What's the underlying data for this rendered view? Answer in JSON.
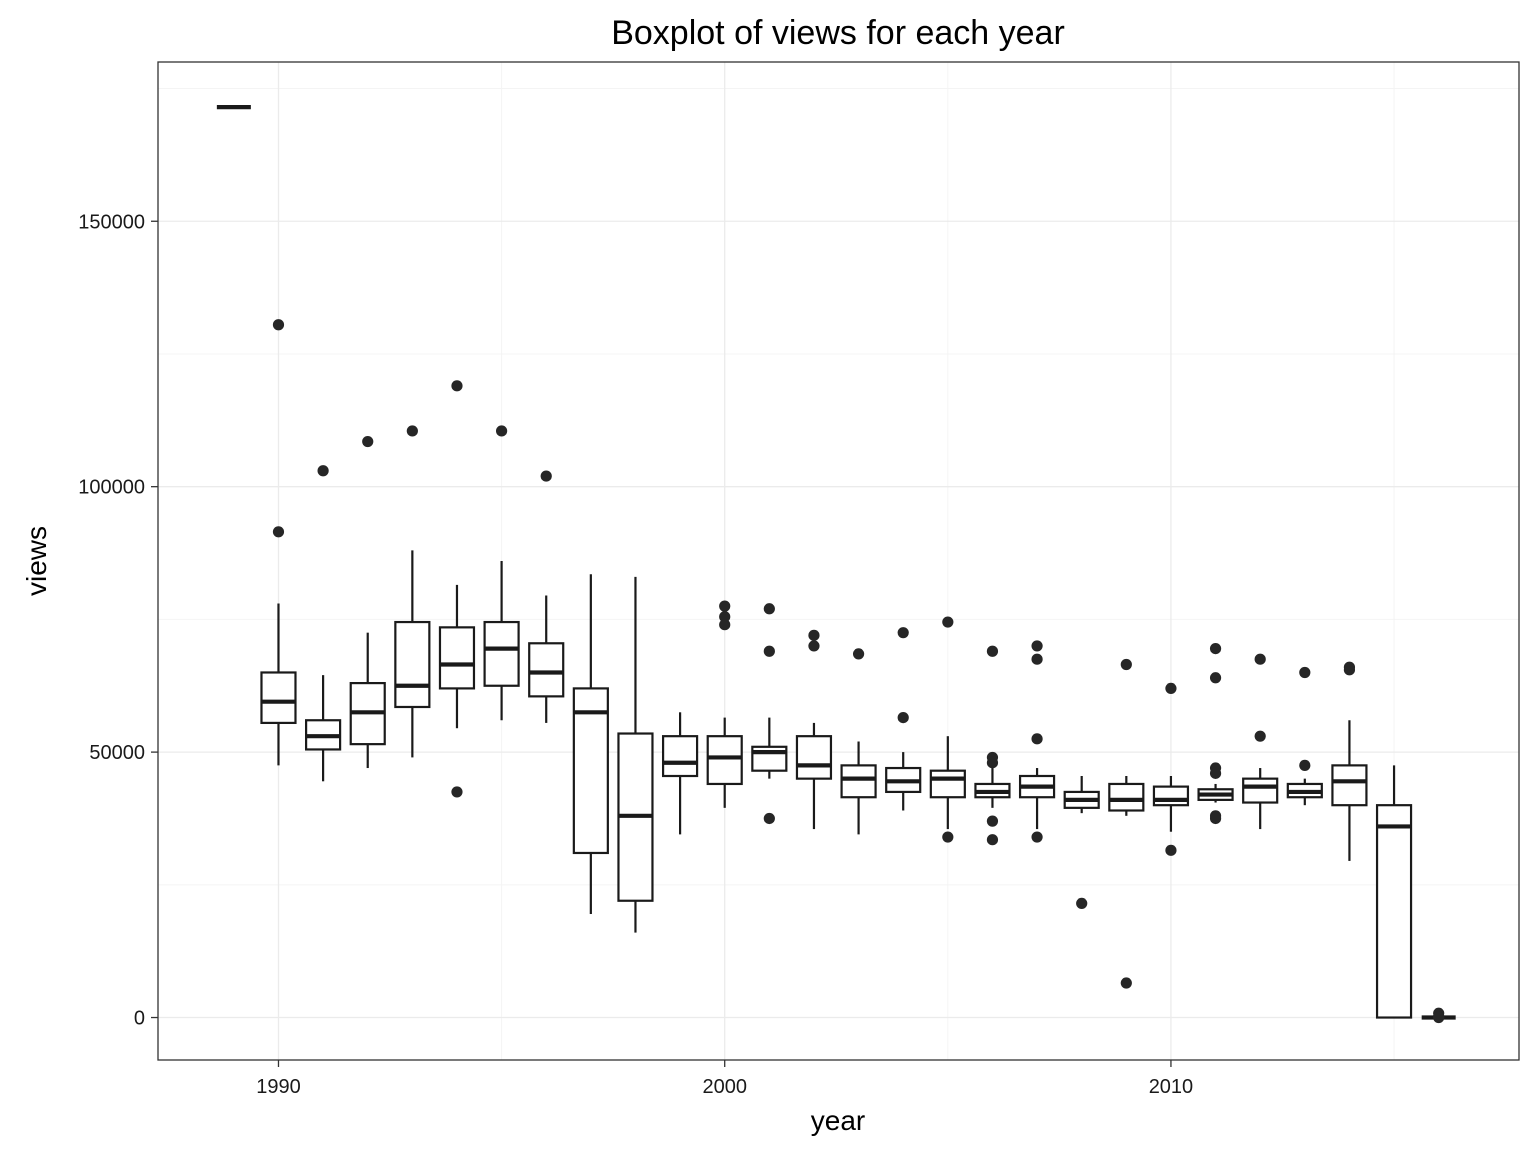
{
  "chart_data": {
    "type": "box",
    "title": "Boxplot of views for each year",
    "xlabel": "year",
    "ylabel": "views",
    "xlim": [
      1987.3,
      2017.8
    ],
    "ylim": [
      -8000,
      180000
    ],
    "x_ticks": [
      1990,
      2000,
      2010
    ],
    "y_ticks": [
      0,
      50000,
      100000,
      150000
    ],
    "grid": true,
    "boxes": [
      {
        "year": 1989,
        "q1": 171500,
        "median": 171500,
        "q3": 171500,
        "whisker_low": 171500,
        "whisker_high": 171500,
        "outliers": []
      },
      {
        "year": 1990,
        "q1": 55500,
        "median": 59500,
        "q3": 65000,
        "whisker_low": 47500,
        "whisker_high": 78000,
        "outliers": [
          91500,
          130500
        ]
      },
      {
        "year": 1991,
        "q1": 50500,
        "median": 53000,
        "q3": 56000,
        "whisker_low": 44500,
        "whisker_high": 64500,
        "outliers": [
          103000
        ]
      },
      {
        "year": 1992,
        "q1": 51500,
        "median": 57500,
        "q3": 63000,
        "whisker_low": 47000,
        "whisker_high": 72500,
        "outliers": [
          108500
        ]
      },
      {
        "year": 1993,
        "q1": 58500,
        "median": 62500,
        "q3": 74500,
        "whisker_low": 49000,
        "whisker_high": 88000,
        "outliers": [
          110500
        ]
      },
      {
        "year": 1994,
        "q1": 62000,
        "median": 66500,
        "q3": 73500,
        "whisker_low": 54500,
        "whisker_high": 81500,
        "outliers": [
          119000,
          42500
        ]
      },
      {
        "year": 1995,
        "q1": 62500,
        "median": 69500,
        "q3": 74500,
        "whisker_low": 56000,
        "whisker_high": 86000,
        "outliers": [
          110500
        ]
      },
      {
        "year": 1996,
        "q1": 60500,
        "median": 65000,
        "q3": 70500,
        "whisker_low": 55500,
        "whisker_high": 79500,
        "outliers": [
          102000
        ]
      },
      {
        "year": 1997,
        "q1": 31000,
        "median": 57500,
        "q3": 62000,
        "whisker_low": 19500,
        "whisker_high": 83500,
        "outliers": []
      },
      {
        "year": 1998,
        "q1": 22000,
        "median": 38000,
        "q3": 53500,
        "whisker_low": 16000,
        "whisker_high": 83000,
        "outliers": []
      },
      {
        "year": 1999,
        "q1": 45500,
        "median": 48000,
        "q3": 53000,
        "whisker_low": 34500,
        "whisker_high": 57500,
        "outliers": []
      },
      {
        "year": 2000,
        "q1": 44000,
        "median": 49000,
        "q3": 53000,
        "whisker_low": 39500,
        "whisker_high": 56500,
        "outliers": [
          77500,
          75500,
          74000
        ]
      },
      {
        "year": 2001,
        "q1": 46500,
        "median": 50000,
        "q3": 51000,
        "whisker_low": 45000,
        "whisker_high": 56500,
        "outliers": [
          77000,
          69000,
          37500
        ]
      },
      {
        "year": 2002,
        "q1": 45000,
        "median": 47500,
        "q3": 53000,
        "whisker_low": 35500,
        "whisker_high": 55500,
        "outliers": [
          72000,
          70000
        ]
      },
      {
        "year": 2003,
        "q1": 41500,
        "median": 45000,
        "q3": 47500,
        "whisker_low": 34500,
        "whisker_high": 52000,
        "outliers": [
          68500
        ]
      },
      {
        "year": 2004,
        "q1": 42500,
        "median": 44500,
        "q3": 47000,
        "whisker_low": 39000,
        "whisker_high": 50000,
        "outliers": [
          72500,
          56500
        ]
      },
      {
        "year": 2005,
        "q1": 41500,
        "median": 45000,
        "q3": 46500,
        "whisker_low": 35500,
        "whisker_high": 53000,
        "outliers": [
          74500,
          34000
        ]
      },
      {
        "year": 2006,
        "q1": 41500,
        "median": 42500,
        "q3": 44000,
        "whisker_low": 39500,
        "whisker_high": 48000,
        "outliers": [
          69000,
          49000,
          48000,
          37000,
          33500
        ]
      },
      {
        "year": 2007,
        "q1": 41500,
        "median": 43500,
        "q3": 45500,
        "whisker_low": 35500,
        "whisker_high": 47000,
        "outliers": [
          70000,
          67500,
          52500,
          34000
        ]
      },
      {
        "year": 2008,
        "q1": 39500,
        "median": 41000,
        "q3": 42500,
        "whisker_low": 38500,
        "whisker_high": 45500,
        "outliers": [
          21500
        ]
      },
      {
        "year": 2009,
        "q1": 39000,
        "median": 41000,
        "q3": 44000,
        "whisker_low": 38000,
        "whisker_high": 45500,
        "outliers": [
          66500,
          6500
        ]
      },
      {
        "year": 2010,
        "q1": 40000,
        "median": 41000,
        "q3": 43500,
        "whisker_low": 35000,
        "whisker_high": 45500,
        "outliers": [
          62000,
          31500
        ]
      },
      {
        "year": 2011,
        "q1": 41000,
        "median": 42000,
        "q3": 43000,
        "whisker_low": 40500,
        "whisker_high": 44000,
        "outliers": [
          69500,
          64000,
          47000,
          46000,
          38000,
          37500
        ]
      },
      {
        "year": 2012,
        "q1": 40500,
        "median": 43500,
        "q3": 45000,
        "whisker_low": 35500,
        "whisker_high": 47000,
        "outliers": [
          67500,
          53000
        ]
      },
      {
        "year": 2013,
        "q1": 41500,
        "median": 42500,
        "q3": 44000,
        "whisker_low": 40000,
        "whisker_high": 45000,
        "outliers": [
          65000,
          47500
        ]
      },
      {
        "year": 2014,
        "q1": 40000,
        "median": 44500,
        "q3": 47500,
        "whisker_low": 29500,
        "whisker_high": 56000,
        "outliers": [
          66000,
          65500
        ]
      },
      {
        "year": 2015,
        "q1": 0,
        "median": 36000,
        "q3": 40000,
        "whisker_low": 0,
        "whisker_high": 47500,
        "outliers": []
      },
      {
        "year": 2016,
        "q1": 0,
        "median": 0,
        "q3": 0,
        "whisker_low": 0,
        "whisker_high": 0,
        "outliers": [
          800,
          200,
          0
        ]
      }
    ]
  },
  "colors": {
    "background": "#ffffff",
    "panel_border": "#333333",
    "box_stroke": "#1a1a1a",
    "outlier_fill": "#262626",
    "grid": "#ebebeb"
  }
}
